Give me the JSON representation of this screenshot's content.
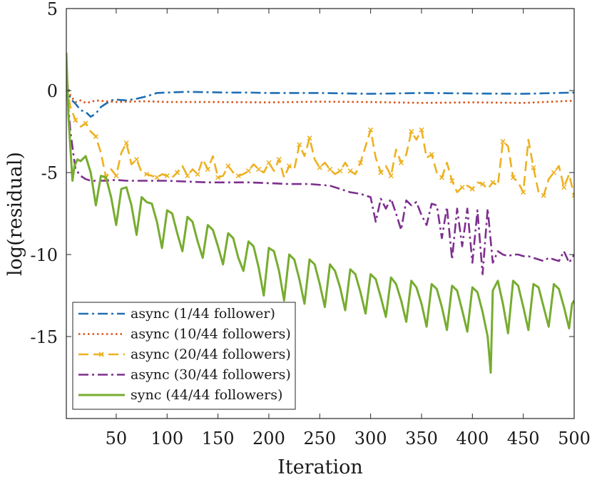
{
  "chart_data": {
    "type": "line",
    "title": "",
    "xlabel": "Iteration",
    "ylabel": "log(residual)",
    "xlim": [
      1,
      500
    ],
    "ylim": [
      -20,
      5
    ],
    "xticks": [
      50,
      100,
      150,
      200,
      250,
      300,
      350,
      400,
      450,
      500
    ],
    "yticks": [
      5,
      0,
      -5,
      -10,
      -15
    ],
    "grid": false,
    "legend_position": "bottom-left",
    "series": [
      {
        "name": "async (1/44 follower)",
        "color": "#1f6fb5",
        "dash": "dashdot",
        "x": [
          1,
          5,
          10,
          15,
          20,
          25,
          30,
          35,
          40,
          45,
          50,
          60,
          70,
          80,
          90,
          100,
          120,
          140,
          160,
          180,
          200,
          250,
          300,
          350,
          400,
          450,
          500
        ],
        "y": [
          0.5,
          -0.5,
          -0.8,
          -1.2,
          -1.3,
          -1.6,
          -1.4,
          -1.0,
          -0.8,
          -0.6,
          -0.55,
          -0.6,
          -0.5,
          -0.35,
          -0.15,
          -0.12,
          -0.08,
          -0.1,
          -0.12,
          -0.12,
          -0.15,
          -0.15,
          -0.2,
          -0.15,
          -0.18,
          -0.2,
          -0.12
        ]
      },
      {
        "name": "async (10/44 followers)",
        "color": "#d95319",
        "dash": "dotted",
        "x": [
          1,
          5,
          10,
          15,
          20,
          25,
          30,
          40,
          50,
          60,
          80,
          100,
          150,
          200,
          250,
          300,
          350,
          400,
          450,
          500
        ],
        "y": [
          0.6,
          -0.3,
          -0.7,
          -0.6,
          -0.75,
          -0.7,
          -0.6,
          -0.65,
          -0.7,
          -0.68,
          -0.65,
          -0.7,
          -0.7,
          -0.72,
          -0.68,
          -0.7,
          -0.75,
          -0.72,
          -0.75,
          -0.62
        ]
      },
      {
        "name": "async (20/44 followers)",
        "color": "#edb120",
        "dash": "dashed",
        "marker": "x",
        "x": [
          1,
          5,
          10,
          15,
          20,
          25,
          30,
          35,
          40,
          45,
          50,
          55,
          60,
          65,
          70,
          75,
          80,
          85,
          90,
          95,
          100,
          105,
          110,
          115,
          120,
          125,
          130,
          135,
          140,
          145,
          150,
          155,
          160,
          165,
          170,
          175,
          180,
          185,
          190,
          195,
          200,
          205,
          210,
          215,
          220,
          225,
          230,
          235,
          240,
          245,
          250,
          255,
          260,
          265,
          270,
          275,
          280,
          285,
          290,
          295,
          300,
          305,
          310,
          315,
          320,
          325,
          330,
          335,
          340,
          345,
          350,
          355,
          360,
          365,
          370,
          375,
          380,
          385,
          390,
          395,
          400,
          405,
          410,
          415,
          420,
          425,
          430,
          435,
          440,
          445,
          450,
          455,
          460,
          465,
          470,
          475,
          480,
          485,
          490,
          495,
          500
        ],
        "y": [
          0.4,
          -1.0,
          -1.8,
          -2.2,
          -2.0,
          -2.5,
          -2.8,
          -3.8,
          -5.3,
          -4.8,
          -5.2,
          -3.8,
          -3.2,
          -4.5,
          -4.2,
          -5.0,
          -5.1,
          -5.2,
          -5.3,
          -5.1,
          -5.2,
          -5.3,
          -5.0,
          -4.6,
          -5.2,
          -4.8,
          -5.1,
          -4.2,
          -4.8,
          -4.0,
          -5.3,
          -5.2,
          -4.6,
          -5.0,
          -5.2,
          -5.1,
          -4.9,
          -4.5,
          -4.8,
          -5.0,
          -4.4,
          -4.9,
          -4.2,
          -5.3,
          -4.6,
          -4.8,
          -3.3,
          -4.0,
          -2.9,
          -4.2,
          -4.7,
          -4.4,
          -4.8,
          -5.1,
          -4.9,
          -4.4,
          -4.9,
          -5.1,
          -4.4,
          -3.4,
          -2.4,
          -4.1,
          -5.0,
          -4.6,
          -5.2,
          -3.6,
          -4.4,
          -3.9,
          -2.5,
          -3.0,
          -2.4,
          -4.1,
          -3.9,
          -5.0,
          -5.3,
          -4.4,
          -5.5,
          -6.2,
          -5.9,
          -5.8,
          -6.0,
          -5.6,
          -5.7,
          -6.0,
          -5.6,
          -5.8,
          -3.1,
          -3.4,
          -5.3,
          -5.6,
          -6.2,
          -3.0,
          -4.7,
          -6.2,
          -6.4,
          -5.4,
          -5.0,
          -4.6,
          -5.9,
          -5.1,
          -6.4
        ]
      },
      {
        "name": "async (30/44 followers)",
        "color": "#7e2f8e",
        "dash": "dashdot",
        "x": [
          1,
          5,
          10,
          15,
          20,
          25,
          30,
          40,
          50,
          60,
          80,
          100,
          120,
          140,
          160,
          180,
          200,
          220,
          240,
          260,
          270,
          280,
          290,
          295,
          300,
          305,
          310,
          315,
          320,
          325,
          330,
          335,
          340,
          345,
          350,
          355,
          360,
          365,
          370,
          375,
          380,
          385,
          390,
          395,
          400,
          405,
          410,
          415,
          420,
          425,
          430,
          435,
          440,
          445,
          450,
          455,
          460,
          465,
          470,
          475,
          480,
          485,
          490,
          495,
          500
        ],
        "y": [
          0.5,
          -2.5,
          -4.8,
          -5.2,
          -5.4,
          -5.5,
          -5.5,
          -5.5,
          -5.45,
          -5.5,
          -5.5,
          -5.5,
          -5.55,
          -5.6,
          -5.6,
          -5.6,
          -5.65,
          -5.7,
          -5.7,
          -5.8,
          -6.0,
          -6.2,
          -6.3,
          -6.4,
          -6.5,
          -8.0,
          -6.6,
          -7.2,
          -6.6,
          -7.5,
          -8.5,
          -6.7,
          -7.0,
          -6.8,
          -7.6,
          -8.2,
          -6.9,
          -7.0,
          -9.0,
          -7.1,
          -10.3,
          -7.2,
          -9.5,
          -7.2,
          -10.5,
          -7.3,
          -11.2,
          -7.2,
          -10.5,
          -9.8,
          -10.0,
          -10.1,
          -10.0,
          -10.0,
          -10.1,
          -10.1,
          -10.2,
          -10.3,
          -10.4,
          -10.2,
          -10.3,
          -10.4,
          -9.8,
          -10.5,
          -10.0
        ]
      },
      {
        "name": "sync (44/44 followers)",
        "color": "#77ac30",
        "dash": "solid",
        "x": [
          1,
          3,
          5,
          7,
          9,
          12,
          15,
          20,
          25,
          30,
          35,
          40,
          45,
          50,
          55,
          60,
          65,
          70,
          75,
          80,
          85,
          90,
          95,
          100,
          105,
          110,
          115,
          120,
          125,
          130,
          135,
          140,
          145,
          150,
          155,
          160,
          165,
          170,
          175,
          180,
          185,
          190,
          195,
          200,
          205,
          210,
          215,
          220,
          225,
          230,
          235,
          240,
          245,
          250,
          255,
          260,
          265,
          270,
          275,
          280,
          285,
          290,
          295,
          300,
          305,
          310,
          315,
          320,
          325,
          330,
          335,
          340,
          345,
          350,
          355,
          360,
          365,
          370,
          375,
          380,
          385,
          390,
          395,
          400,
          405,
          410,
          415,
          418,
          420,
          425,
          430,
          435,
          440,
          445,
          450,
          455,
          460,
          465,
          470,
          475,
          480,
          485,
          490,
          495,
          498,
          500
        ],
        "y": [
          2.3,
          -1.5,
          -3.5,
          -5.5,
          -4.6,
          -4.2,
          -4.3,
          -4.0,
          -5.0,
          -7.0,
          -5.2,
          -5.3,
          -6.5,
          -8.2,
          -6.0,
          -5.9,
          -7.0,
          -8.8,
          -6.5,
          -6.8,
          -6.9,
          -8.0,
          -9.6,
          -7.3,
          -7.5,
          -8.7,
          -9.8,
          -7.7,
          -8.0,
          -9.2,
          -10.2,
          -8.2,
          -8.5,
          -9.5,
          -10.6,
          -8.7,
          -9.0,
          -10.2,
          -11.0,
          -9.2,
          -9.5,
          -10.8,
          -12.5,
          -9.6,
          -9.8,
          -11.0,
          -12.8,
          -10.0,
          -10.3,
          -11.5,
          -13.0,
          -10.3,
          -10.6,
          -11.8,
          -13.2,
          -10.6,
          -11.0,
          -12.0,
          -13.4,
          -10.9,
          -11.2,
          -12.3,
          -13.6,
          -11.2,
          -11.5,
          -12.6,
          -13.8,
          -11.4,
          -11.8,
          -12.8,
          -14.1,
          -11.6,
          -12.0,
          -13.0,
          -14.4,
          -11.8,
          -12.1,
          -13.2,
          -14.6,
          -11.9,
          -12.2,
          -13.4,
          -14.7,
          -12.0,
          -12.3,
          -13.5,
          -15.0,
          -17.2,
          -12.2,
          -11.6,
          -13.0,
          -14.8,
          -11.6,
          -11.9,
          -13.2,
          -14.6,
          -11.8,
          -12.0,
          -13.2,
          -14.4,
          -11.8,
          -12.1,
          -13.2,
          -14.5,
          -13.0,
          -12.8
        ]
      }
    ]
  }
}
